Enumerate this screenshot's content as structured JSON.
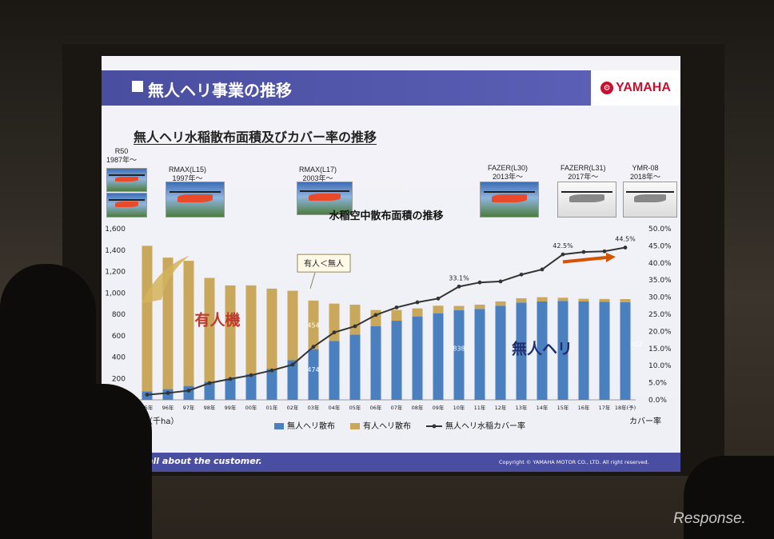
{
  "slide": {
    "title": "無人ヘリ事業の推移",
    "brand": "YAMAHA",
    "subtitle": "無人ヘリ水稲散布面積及びカバー率の推移",
    "footer_slogan": "It's all about the customer.",
    "footer_copyright": "Copyright © YAMAHA MOTOR CO., LTD.  All right reserved."
  },
  "helicopters": [
    {
      "model": "R50",
      "year": "1987年～"
    },
    {
      "model": "RMAX(L15)",
      "year": "1997年～"
    },
    {
      "model": "RMAX(L17)",
      "year": "2003年～"
    },
    {
      "model": "FAZER(L30)",
      "year": "2013年～"
    },
    {
      "model": "FAZERR(L31)",
      "year": "2017年～"
    },
    {
      "model": "YMR-08",
      "year": "2018年～"
    }
  ],
  "watermark": "Response.",
  "chart_data": {
    "type": "bar",
    "title": "水稲空中散布面積の推移",
    "stacked": true,
    "categories": [
      "95年",
      "96年",
      "97年",
      "98年",
      "99年",
      "00年",
      "01年",
      "02年",
      "03年",
      "04年",
      "05年",
      "06年",
      "07年",
      "08年",
      "09年",
      "10年",
      "11年",
      "12年",
      "13年",
      "14年",
      "15年",
      "16年",
      "17年",
      "18年(予)"
    ],
    "series": [
      {
        "name": "無人ヘリ散布",
        "color": "#4a7fc0",
        "axis": "left",
        "values": [
          80,
          100,
          130,
          170,
          200,
          240,
          290,
          370,
          474,
          550,
          610,
          690,
          740,
          780,
          810,
          838,
          850,
          880,
          910,
          920,
          925,
          920,
          918,
          912
        ]
      },
      {
        "name": "有人ヘリ散布",
        "color": "#c9a85c",
        "axis": "left",
        "values": [
          1360,
          1230,
          1170,
          970,
          870,
          830,
          750,
          650,
          454,
          350,
          280,
          150,
          100,
          75,
          70,
          40,
          40,
          40,
          40,
          40,
          30,
          25,
          25,
          30
        ]
      },
      {
        "name": "無人ヘリ水稲カバー率",
        "color": "#333333",
        "axis": "right",
        "type": "line",
        "values": [
          1.5,
          2.0,
          2.7,
          4.9,
          6.1,
          7.2,
          8.6,
          10.3,
          15.5,
          19.7,
          21.5,
          24.8,
          27.0,
          28.5,
          29.6,
          33.1,
          34.3,
          34.6,
          36.6,
          38.1,
          42.5,
          43.2,
          43.4,
          44.5
        ]
      }
    ],
    "ylabel_left": "散布面積（千ha）",
    "ylabel_right": "カバー率",
    "ylim_left": [
      0,
      1600
    ],
    "yticks_left": [
      "0",
      "200",
      "400",
      "600",
      "800",
      "1,000",
      "1,200",
      "1,400",
      "1,600"
    ],
    "ylim_right": [
      0,
      50
    ],
    "yticks_right": [
      "0.0%",
      "5.0%",
      "10.0%",
      "15.0%",
      "20.0%",
      "25.0%",
      "30.0%",
      "35.0%",
      "40.0%",
      "45.0%",
      "50.0%"
    ],
    "data_labels": [
      {
        "series": 1,
        "index": 8,
        "text": "454"
      },
      {
        "series": 0,
        "index": 8,
        "text": "474"
      },
      {
        "series": 0,
        "index": 15,
        "text": "838"
      },
      {
        "series": 0,
        "index": 23,
        "text": "912"
      },
      {
        "series": 2,
        "index": 15,
        "text": "33.1%"
      },
      {
        "series": 2,
        "index": 20,
        "text": "42.5%"
      },
      {
        "series": 2,
        "index": 23,
        "text": "44.5%"
      }
    ],
    "annotations": {
      "manned_label": "有人機",
      "unmanned_label": "無人ヘリ",
      "crossover_callout": "有人＜無人"
    },
    "legend_position": "bottom",
    "grid": false
  }
}
